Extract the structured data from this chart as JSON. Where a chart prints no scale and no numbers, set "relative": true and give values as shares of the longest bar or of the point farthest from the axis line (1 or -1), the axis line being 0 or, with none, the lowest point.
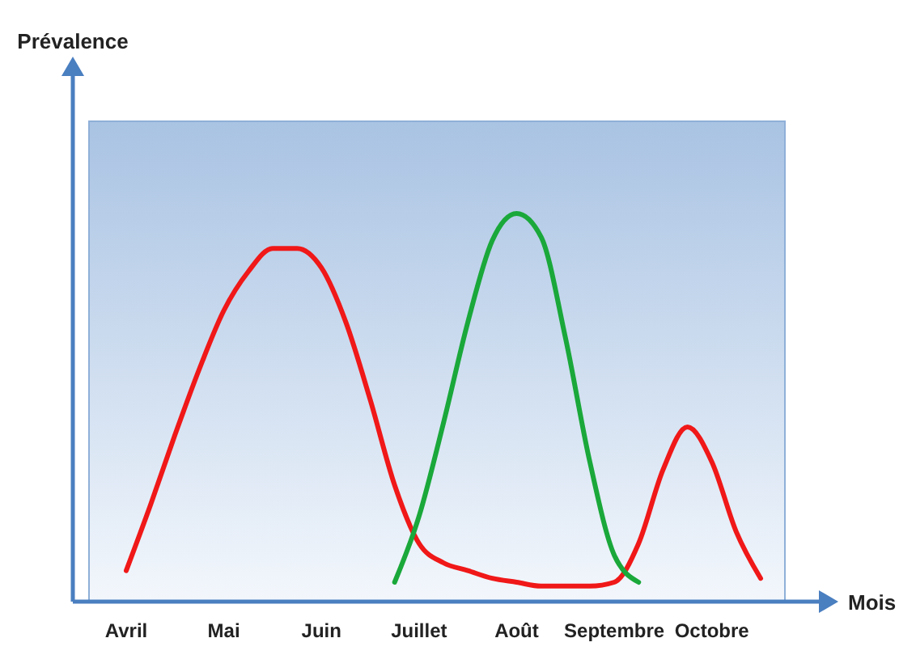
{
  "chart_data": {
    "type": "line",
    "relative": true,
    "xlabel": "Mois",
    "annotations": [
      "Prévalence"
    ],
    "categories": [
      "Avril",
      null,
      null,
      null,
      "Mai",
      null,
      null,
      null,
      "Juin",
      null,
      null,
      null,
      "Juillet",
      null,
      null,
      null,
      "Août",
      null,
      null,
      null,
      "Septembre",
      null,
      null,
      null,
      "Octobre",
      null,
      null
    ],
    "grid": false,
    "marker": "none",
    "line_style": "solid",
    "series": [
      {
        "color": "#f01818",
        "values": [
          0.08,
          0.25,
          0.43,
          0.6,
          0.75,
          0.85,
          0.91,
          0.91,
          0.86,
          0.72,
          0.52,
          0.3,
          0.15,
          0.1,
          0.08,
          0.06,
          0.05,
          0.04,
          0.04,
          0.04,
          0.05,
          0.15,
          0.34,
          0.45,
          0.36,
          0.18,
          0.06
        ]
      },
      {
        "color": "#1aa83a",
        "values": [
          null,
          null,
          null,
          null,
          null,
          null,
          null,
          null,
          null,
          null,
          null,
          0.05,
          0.22,
          0.46,
          0.72,
          0.93,
          1,
          0.94,
          0.68,
          0.36,
          0.12,
          0.05,
          null,
          null,
          null,
          null,
          null
        ]
      }
    ]
  }
}
